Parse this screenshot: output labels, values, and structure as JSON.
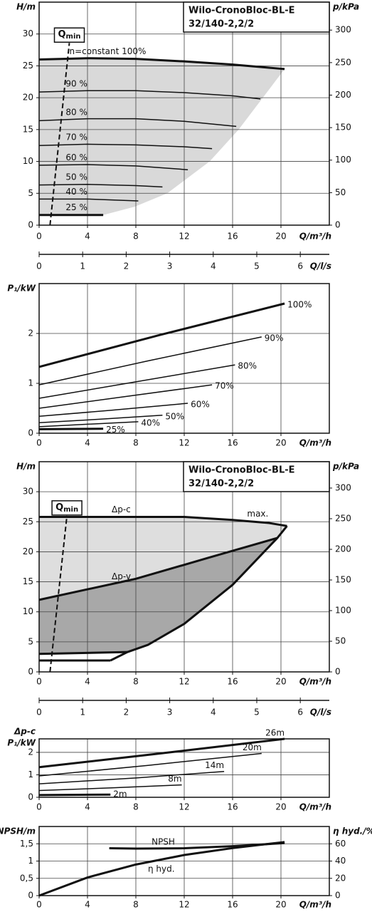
{
  "chart_data": [
    {
      "type": "line",
      "title": "Wilo-CronoBloc-BL-E",
      "subtitle": "32/140-2,2/2",
      "xlabel": "Q/m³/h",
      "ylabel": "H/m",
      "y2label": "p/kPa",
      "xlim": [
        0,
        24
      ],
      "xticks": [
        0,
        4,
        8,
        12,
        16,
        20
      ],
      "ylim": [
        0,
        35
      ],
      "yticks": [
        0,
        5,
        10,
        15,
        20,
        25,
        30
      ],
      "y2lim": [
        0,
        343
      ],
      "y2ticks": [
        0,
        50,
        100,
        150,
        200,
        250,
        300
      ],
      "x2label": "Q/l/s",
      "x2lim": [
        0,
        6.667
      ],
      "x2ticks": [
        0,
        1,
        2,
        3,
        4,
        5,
        6
      ],
      "grid": true,
      "qmin": {
        "label": "Q",
        "sub": "min",
        "x": [
          0.9,
          2.5
        ],
        "y": [
          0,
          28.6
        ]
      },
      "areas": [
        {
          "color": "#d9d9d9",
          "x": [
            0,
            4,
            8,
            12,
            16,
            20.3,
            18.5,
            16.5,
            14.1,
            10.6,
            7.9,
            5.3,
            0
          ],
          "y": [
            26,
            26.2,
            26.1,
            25.7,
            25.2,
            24.5,
            20,
            15,
            10,
            5,
            2.9,
            1.6,
            1.6
          ]
        }
      ],
      "series": [
        {
          "name": "n=constant 100%",
          "color": "#111",
          "line_width": 3,
          "x": [
            0,
            4,
            8,
            12,
            16,
            20.3
          ],
          "values": [
            26,
            26.2,
            26.1,
            25.7,
            25.2,
            24.5
          ]
        },
        {
          "name": "90 %",
          "color": "#111",
          "line_width": 1.5,
          "x": [
            0,
            4,
            8,
            12,
            16,
            18.3
          ],
          "values": [
            20.9,
            21.1,
            21.1,
            20.8,
            20.3,
            19.8
          ]
        },
        {
          "name": "80 %",
          "color": "#111",
          "line_width": 1.5,
          "x": [
            0,
            4,
            8,
            12,
            16.3
          ],
          "values": [
            16.4,
            16.7,
            16.7,
            16.3,
            15.5
          ]
        },
        {
          "name": "70 %",
          "color": "#111",
          "line_width": 1.5,
          "x": [
            0,
            4,
            8,
            12,
            14.3
          ],
          "values": [
            12.5,
            12.7,
            12.6,
            12.3,
            12
          ]
        },
        {
          "name": "60 %",
          "color": "#111",
          "line_width": 1.5,
          "x": [
            0,
            4,
            8,
            12.3
          ],
          "values": [
            9.4,
            9.5,
            9.3,
            8.7
          ]
        },
        {
          "name": "50 %",
          "color": "#111",
          "line_width": 1.5,
          "x": [
            0,
            4,
            8,
            10.2
          ],
          "values": [
            6.3,
            6.4,
            6.2,
            6
          ]
        },
        {
          "name": "40 %",
          "color": "#111",
          "line_width": 1.5,
          "x": [
            0,
            4,
            8.2
          ],
          "values": [
            4.1,
            4.1,
            3.8
          ]
        },
        {
          "name": "25 %",
          "color": "#111",
          "line_width": 3,
          "x": [
            0,
            5.3
          ],
          "values": [
            1.6,
            1.6
          ]
        }
      ]
    },
    {
      "type": "line",
      "xlabel": "Q/m³/h",
      "ylabel": "P₁/kW",
      "xlim": [
        0,
        24
      ],
      "xticks": [
        0,
        4,
        8,
        12,
        16,
        20
      ],
      "ylim": [
        0,
        3
      ],
      "yticks": [
        0,
        1,
        2
      ],
      "grid": true,
      "series": [
        {
          "name": "100%",
          "color": "#111",
          "line_width": 3,
          "x": [
            0,
            10,
            20.3
          ],
          "values": [
            1.33,
            1.97,
            2.6
          ]
        },
        {
          "name": "90%",
          "color": "#111",
          "line_width": 1.5,
          "x": [
            0,
            9,
            18.4
          ],
          "values": [
            0.97,
            1.45,
            1.93
          ]
        },
        {
          "name": "80%",
          "color": "#111",
          "line_width": 1.5,
          "x": [
            0,
            8,
            16.2
          ],
          "values": [
            0.7,
            1.03,
            1.37
          ]
        },
        {
          "name": "70%",
          "color": "#111",
          "line_width": 1.5,
          "x": [
            0,
            7,
            14.3
          ],
          "values": [
            0.5,
            0.73,
            0.97
          ]
        },
        {
          "name": "60%",
          "color": "#111",
          "line_width": 1.5,
          "x": [
            0,
            6,
            12.3
          ],
          "values": [
            0.34,
            0.46,
            0.6
          ]
        },
        {
          "name": "50%",
          "color": "#111",
          "line_width": 1.5,
          "x": [
            0,
            5,
            10.2
          ],
          "values": [
            0.21,
            0.28,
            0.36
          ]
        },
        {
          "name": "40%",
          "color": "#111",
          "line_width": 1.5,
          "x": [
            0,
            4,
            8.2
          ],
          "values": [
            0.13,
            0.18,
            0.23
          ]
        },
        {
          "name": "25%",
          "color": "#111",
          "line_width": 3,
          "x": [
            0,
            5.3
          ],
          "values": [
            0.08,
            0.09
          ]
        }
      ]
    },
    {
      "type": "line",
      "title": "Wilo-CronoBloc-BL-E",
      "subtitle": "32/140-2,2/2",
      "xlabel": "Q/m³/h",
      "ylabel": "H/m",
      "y2label": "p/kPa",
      "xlim": [
        0,
        24
      ],
      "xticks": [
        0,
        4,
        8,
        12,
        16,
        20
      ],
      "ylim": [
        0,
        35
      ],
      "yticks": [
        0,
        5,
        10,
        15,
        20,
        25,
        30
      ],
      "y2lim": [
        0,
        343
      ],
      "y2ticks": [
        0,
        50,
        100,
        150,
        200,
        250,
        300
      ],
      "x2label": "Q/l/s",
      "x2lim": [
        0,
        6.667
      ],
      "x2ticks": [
        0,
        1,
        2,
        3,
        4,
        5,
        6
      ],
      "grid": true,
      "qmin": {
        "label": "Q",
        "sub": "min",
        "x": [
          0.9,
          2.3
        ],
        "y": [
          0,
          26
        ]
      },
      "areas": [
        {
          "color": "#dedede",
          "x": [
            0,
            12,
            16,
            19,
            20.5,
            19.7,
            14,
            8,
            0
          ],
          "y": [
            25.8,
            25.8,
            25.3,
            24.8,
            24.3,
            22.3,
            19,
            15.5,
            12
          ]
        },
        {
          "color": "#a8a8a8",
          "x": [
            0,
            8,
            14,
            19.7,
            16,
            12,
            9,
            7.3,
            0
          ],
          "y": [
            12,
            15.5,
            19,
            22.3,
            14.5,
            8,
            4.5,
            3.3,
            3
          ]
        }
      ],
      "annotations": [
        {
          "text": "max."
        }
      ],
      "series": [
        {
          "name": "Δp-c",
          "color": "#111",
          "line_width": 3,
          "x": [
            0,
            12,
            16,
            19,
            20.5
          ],
          "values": [
            25.8,
            25.8,
            25.3,
            24.8,
            24.3
          ]
        },
        {
          "name": "Δp-v",
          "color": "#111",
          "line_width": 3,
          "x": [
            0,
            8,
            14,
            19.7
          ],
          "values": [
            12,
            15.5,
            19,
            22.3
          ]
        },
        {
          "color": "#111",
          "line_width": 3,
          "x": [
            20.5,
            19.7,
            16,
            12,
            9,
            7.3,
            5.9
          ],
          "values": [
            24.3,
            22.3,
            14.5,
            8,
            4.5,
            3.3,
            1.9
          ]
        },
        {
          "color": "#111",
          "line_width": 3,
          "x": [
            0,
            7.3
          ],
          "values": [
            3,
            3.3
          ]
        },
        {
          "color": "#111",
          "line_width": 3,
          "x": [
            0,
            5.9
          ],
          "values": [
            1.9,
            1.9
          ]
        }
      ]
    },
    {
      "type": "line",
      "xlabel": "Q/m³/h",
      "ylabel_lines": [
        "Δp-c",
        "P₁/kW"
      ],
      "xlim": [
        0,
        24
      ],
      "xticks": [
        0,
        4,
        8,
        12,
        16,
        20
      ],
      "ylim": [
        0,
        2.6
      ],
      "yticks": [
        0,
        1,
        2
      ],
      "grid": true,
      "series": [
        {
          "name": "26m",
          "color": "#111",
          "line_width": 3,
          "x": [
            0,
            10,
            20.3
          ],
          "values": [
            1.34,
            1.95,
            2.6
          ]
        },
        {
          "name": "20m",
          "color": "#111",
          "line_width": 1.5,
          "x": [
            0,
            9,
            18.4
          ],
          "values": [
            0.95,
            1.42,
            1.95
          ]
        },
        {
          "name": "14m",
          "color": "#111",
          "line_width": 1.5,
          "x": [
            0,
            8,
            15.3
          ],
          "values": [
            0.6,
            0.86,
            1.15
          ]
        },
        {
          "name": "8m",
          "color": "#111",
          "line_width": 1.5,
          "x": [
            0,
            6,
            11.8
          ],
          "values": [
            0.3,
            0.42,
            0.55
          ]
        },
        {
          "name": "2m",
          "color": "#111",
          "line_width": 3,
          "x": [
            0,
            5.9
          ],
          "values": [
            0.1,
            0.12
          ]
        }
      ]
    },
    {
      "type": "line",
      "xlabel": "Q/m³/h",
      "ylabel": "NPSH/m",
      "y2label": "η hyd./%",
      "xlim": [
        0,
        24
      ],
      "xticks": [
        0,
        4,
        8,
        12,
        16,
        20
      ],
      "ylim": [
        0,
        2
      ],
      "yticks": [
        0,
        {
          "value": 0.5,
          "label": "0,5"
        },
        1,
        {
          "value": 1.5,
          "label": "1,5"
        }
      ],
      "y2lim": [
        0,
        80
      ],
      "y2ticks": [
        0,
        20,
        40,
        60
      ],
      "grid": true,
      "series": [
        {
          "name": "NPSH",
          "color": "#111",
          "line_width": 3,
          "x": [
            5.8,
            8,
            12,
            16,
            20.3
          ],
          "values": [
            1.37,
            1.36,
            1.37,
            1.43,
            1.52
          ]
        },
        {
          "name": "η hyd.",
          "color": "#111",
          "line_width": 3,
          "axis": "y2",
          "x": [
            0,
            4,
            8,
            12,
            16,
            20.3
          ],
          "values": [
            0,
            21,
            36,
            47,
            55,
            62
          ]
        }
      ]
    }
  ]
}
